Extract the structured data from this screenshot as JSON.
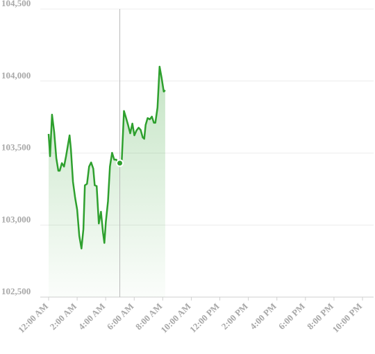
{
  "chart_data": {
    "type": "line",
    "x": [
      0,
      0.1,
      0.24,
      0.39,
      0.54,
      0.68,
      0.78,
      0.93,
      1.08,
      1.22,
      1.47,
      1.56,
      1.71,
      1.86,
      2.0,
      2.15,
      2.3,
      2.44,
      2.54,
      2.69,
      2.84,
      2.98,
      3.13,
      3.23,
      3.37,
      3.52,
      3.67,
      3.81,
      3.91,
      4.01,
      4.16,
      4.3,
      4.45,
      4.6,
      4.74,
      4.89,
      4.99,
      5.13,
      5.28,
      5.43,
      5.57,
      5.72,
      5.87,
      6.01,
      6.16,
      6.31,
      6.45,
      6.6,
      6.7,
      6.8,
      6.94,
      7.09,
      7.24,
      7.38,
      7.48,
      7.63,
      7.78,
      7.92,
      8.07,
      8.17
    ],
    "series": [
      {
        "color": "#2ea02e",
        "values": [
          103633,
          103478,
          103767,
          103647,
          103464,
          103377,
          103377,
          103430,
          103406,
          103478,
          103623,
          103527,
          103300,
          103189,
          103107,
          102924,
          102837,
          102972,
          103276,
          103286,
          103406,
          103435,
          103392,
          103276,
          103271,
          103011,
          103093,
          102948,
          102876,
          103021,
          103165,
          103406,
          103502,
          103454,
          103454,
          103430,
          103430,
          103454,
          103792,
          103743,
          103695,
          103637,
          103705,
          103623,
          103657,
          103676,
          103661,
          103608,
          103599,
          103695,
          103743,
          103734,
          103753,
          103710,
          103710,
          103816,
          104100,
          104023,
          103927,
          103936
        ]
      }
    ],
    "crosshair_index": 36,
    "xlim": [
      0,
      22
    ],
    "xticks": [
      {
        "value": 0,
        "label": "12:00 AM"
      },
      {
        "value": 2,
        "label": "2:00 AM"
      },
      {
        "value": 4,
        "label": "4:00 AM"
      },
      {
        "value": 6,
        "label": "6:00 AM"
      },
      {
        "value": 8,
        "label": "8:00 AM"
      },
      {
        "value": 10,
        "label": "10:00 AM"
      },
      {
        "value": 12,
        "label": "12:00 PM"
      },
      {
        "value": 14,
        "label": "2:00 PM"
      },
      {
        "value": 16,
        "label": "4:00 PM"
      },
      {
        "value": 18,
        "label": "6:00 PM"
      },
      {
        "value": 20,
        "label": "8:00 PM"
      },
      {
        "value": 22,
        "label": "10:00 PM"
      }
    ],
    "ylim": [
      102500,
      104500
    ],
    "yticks": [
      {
        "value": 102500,
        "label": "102,500"
      },
      {
        "value": 103000,
        "label": "103,000"
      },
      {
        "value": 103500,
        "label": "103,500"
      },
      {
        "value": 104000,
        "label": "104,000"
      },
      {
        "value": 104500,
        "label": "104,500"
      }
    ],
    "grid": true
  }
}
